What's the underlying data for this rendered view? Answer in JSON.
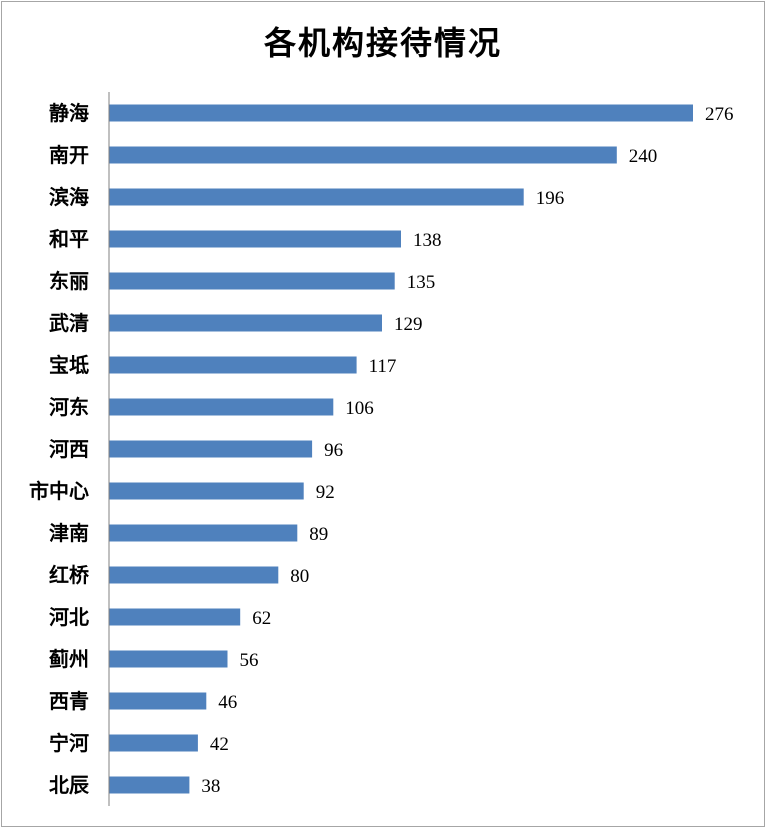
{
  "chart_data": {
    "type": "bar",
    "orientation": "horizontal",
    "title": "各机构接待情况",
    "categories": [
      "静海",
      "南开",
      "滨海",
      "和平",
      "东丽",
      "武清",
      "宝坻",
      "河东",
      "河西",
      "市中心",
      "津南",
      "红桥",
      "河北",
      "蓟州",
      "西青",
      "宁河",
      "北辰"
    ],
    "values": [
      276,
      240,
      196,
      138,
      135,
      129,
      117,
      106,
      96,
      92,
      89,
      80,
      62,
      56,
      46,
      42,
      38
    ],
    "xlim": [
      0,
      300
    ],
    "xlabel": "",
    "ylabel": "",
    "grid": false,
    "legend": "none",
    "bar_color": "#4f81bd",
    "axis_color": "#808080"
  }
}
